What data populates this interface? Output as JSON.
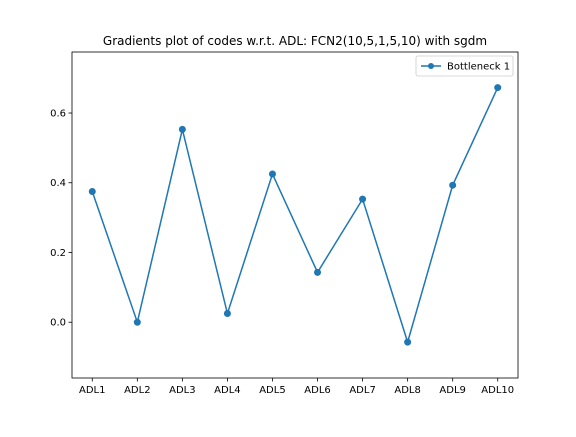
{
  "chart_data": {
    "type": "line",
    "title": "Gradients plot of codes w.r.t. ADL: FCN2(10,5,1,5,10) with sgdm",
    "xlabel": "",
    "ylabel": "",
    "categories": [
      "ADL1",
      "ADL2",
      "ADL3",
      "ADL4",
      "ADL5",
      "ADL6",
      "ADL7",
      "ADL8",
      "ADL9",
      "ADL10"
    ],
    "series": [
      {
        "name": "Bottleneck 1",
        "color": "#1f77b4",
        "marker": "circle",
        "values": [
          0.375,
          0.0,
          0.553,
          0.025,
          0.425,
          0.143,
          0.353,
          -0.057,
          0.393,
          0.673
        ]
      }
    ],
    "ylim": [
      -0.16,
      0.775
    ],
    "yticks": [
      0.0,
      0.2,
      0.4,
      0.6
    ],
    "ytick_labels": [
      "0.0",
      "0.2",
      "0.4",
      "0.6"
    ],
    "grid": false,
    "legend_position": "top-right"
  }
}
